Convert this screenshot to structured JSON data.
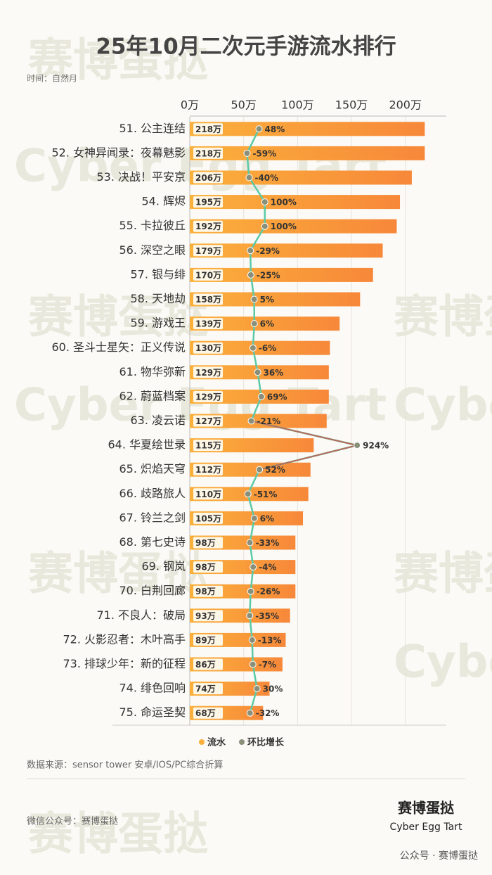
{
  "chart_data": {
    "type": "bar",
    "title": "25年10月二次元手游流水排行",
    "subtitle": "时间：自然月",
    "categories": [
      "51. 公主连结",
      "52. 女神异闻录：夜幕魅影",
      "53. 决战！平安京",
      "54. 辉烬",
      "55. 卡拉彼丘",
      "56. 深空之眼",
      "57. 银与绯",
      "58. 天地劫",
      "59. 游戏王",
      "60. 圣斗士星矢：正义传说",
      "61. 物华弥新",
      "62. 蔚蓝档案",
      "63. 凌云诺",
      "64. 华夏绘世录",
      "65. 炽焰天穹",
      "66. 歧路旅人",
      "67. 铃兰之剑",
      "68. 第七史诗",
      "69. 钢岚",
      "70. 白荆回廊",
      "71. 不良人：破局",
      "72. 火影忍者：木叶高手",
      "73. 排球少年：新的征程",
      "74. 绯色回响",
      "75. 命运圣契"
    ],
    "series": [
      {
        "name": "流水",
        "color": "#fbb03b",
        "color_end": "#f7883a",
        "values": [
          218,
          218,
          206,
          195,
          192,
          179,
          170,
          158,
          139,
          130,
          129,
          129,
          127,
          115,
          112,
          110,
          105,
          98,
          98,
          98,
          93,
          89,
          86,
          74,
          68
        ],
        "value_labels": [
          "218万",
          "218万",
          "206万",
          "195万",
          "192万",
          "179万",
          "170万",
          "158万",
          "139万",
          "130万",
          "129万",
          "129万",
          "127万",
          "115万",
          "112万",
          "110万",
          "105万",
          "98万",
          "98万",
          "98万",
          "93万",
          "89万",
          "86万",
          "74万",
          "68万"
        ]
      },
      {
        "name": "环比增长",
        "type": "line",
        "axis": "x2",
        "color": "#5cc9a7",
        "marker_color": "#8a8f7a",
        "outlier_color": "#b66a5a",
        "values": [
          48,
          -59,
          -40,
          100,
          100,
          -29,
          -25,
          5,
          6,
          -6,
          36,
          69,
          -21,
          924,
          52,
          -51,
          6,
          -33,
          -4,
          -26,
          -35,
          -13,
          -7,
          30,
          -32
        ],
        "value_labels": [
          "48%",
          "-59%",
          "-40%",
          "100%",
          "100%",
          "-29%",
          "-25%",
          "5%",
          "6%",
          "-6%",
          "36%",
          "69%",
          "-21%",
          "924%",
          "52%",
          "-51%",
          "6%",
          "-33%",
          "-4%",
          "-26%",
          "-35%",
          "-13%",
          "-7%",
          "30%",
          "-32%"
        ]
      }
    ],
    "xlim": [
      0,
      238
    ],
    "xticks": [
      {
        "value": 0,
        "label": "0万"
      },
      {
        "value": 50,
        "label": "50万"
      },
      {
        "value": 100,
        "label": "100万"
      },
      {
        "value": 150,
        "label": "150万"
      },
      {
        "value": 200,
        "label": "200万"
      }
    ],
    "x2lim": [
      -570,
      1720
    ],
    "grid": true,
    "legend": "bottom",
    "source": "数据来源：sensor tower 安卓/IOS/PC综合折算",
    "footer": "微信公众号：赛博蛋挞",
    "logo": "赛博蛋挞",
    "logo_en": "Cyber Egg Tart",
    "credit": "公众号 · 赛博蛋挞",
    "watermark": [
      "赛博蛋挞",
      "Cyber Egg Tart"
    ]
  }
}
